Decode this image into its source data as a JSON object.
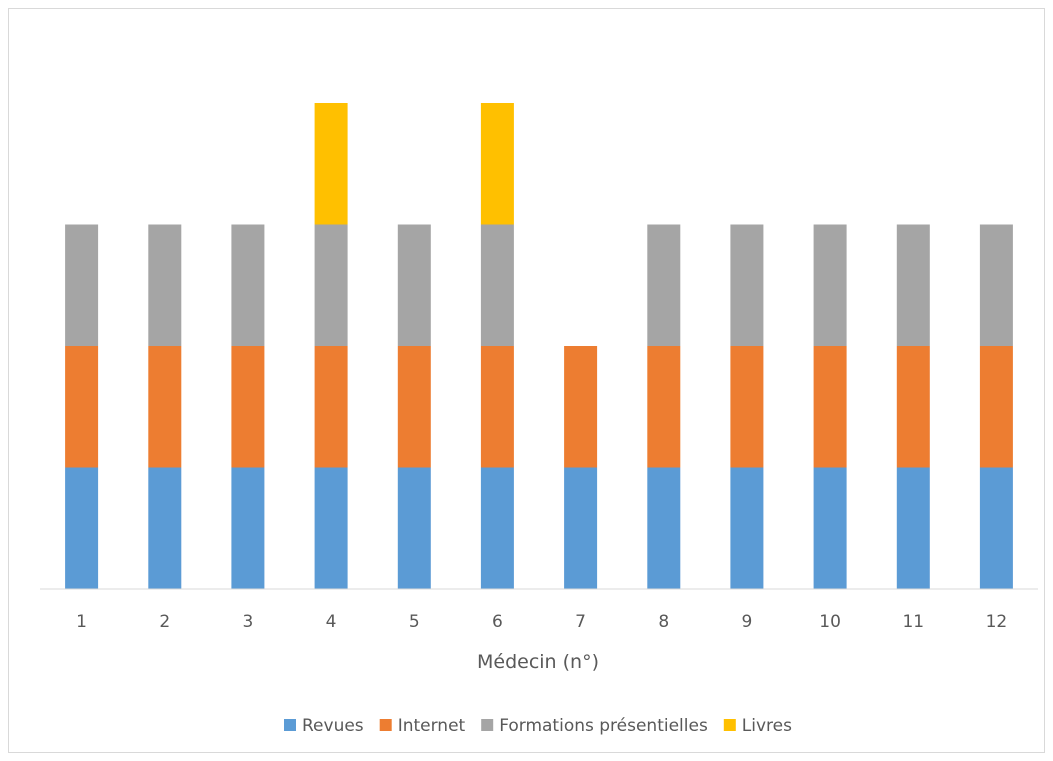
{
  "chart_data": {
    "type": "bar",
    "stacked": true,
    "categories": [
      "1",
      "2",
      "3",
      "4",
      "5",
      "6",
      "7",
      "8",
      "9",
      "10",
      "11",
      "12"
    ],
    "series": [
      {
        "name": "Revues",
        "color": "#5b9bd5",
        "values": [
          1,
          1,
          1,
          1,
          1,
          1,
          1,
          1,
          1,
          1,
          1,
          1
        ]
      },
      {
        "name": "Internet",
        "color": "#ed7d31",
        "values": [
          1,
          1,
          1,
          1,
          1,
          1,
          1,
          1,
          1,
          1,
          1,
          1
        ]
      },
      {
        "name": "Formations présentielles",
        "color": "#a5a5a5",
        "values": [
          1,
          1,
          1,
          1,
          1,
          1,
          0,
          1,
          1,
          1,
          1,
          1
        ]
      },
      {
        "name": "Livres",
        "color": "#ffc000",
        "values": [
          0,
          0,
          0,
          1,
          0,
          1,
          0,
          0,
          0,
          0,
          0,
          0
        ]
      }
    ],
    "title": "",
    "xlabel": "Médecin (n°)",
    "ylabel": "",
    "ylim": [
      0,
      4
    ],
    "grid": false,
    "y_axis_visible": false,
    "legend": "bottom"
  }
}
